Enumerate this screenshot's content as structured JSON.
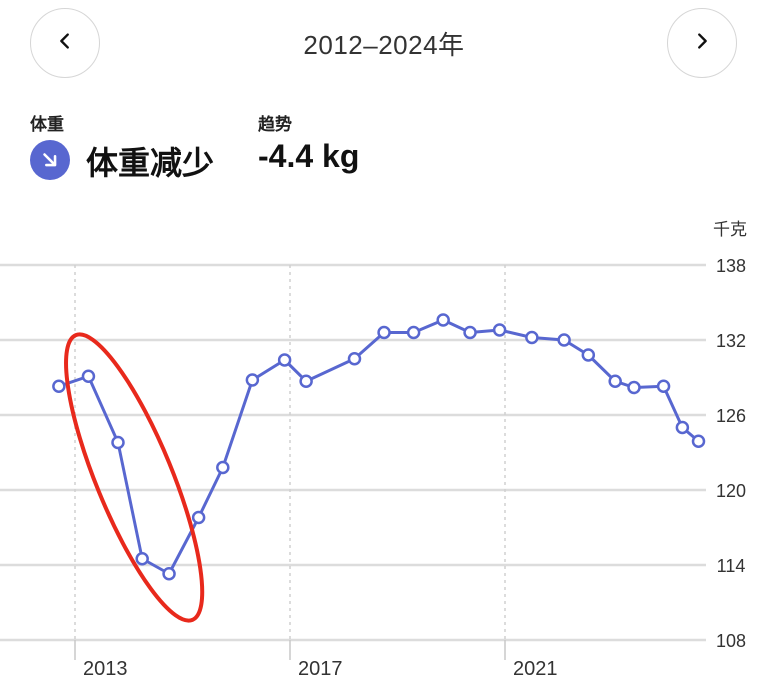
{
  "header": {
    "range_title": "2012–2024年",
    "prev_icon": "chevron-left-icon",
    "next_icon": "chevron-right-icon"
  },
  "stats": {
    "weight_label": "体重",
    "weight_value": "体重减少",
    "trend_label": "趋势",
    "trend_value": "-4.4 kg",
    "trend_icon": "arrow-down-right-icon",
    "accent_color": "#5867d0"
  },
  "chart_data": {
    "type": "line",
    "ylabel": "千克",
    "ylim": [
      108,
      138
    ],
    "yticks": [
      108,
      114,
      120,
      126,
      132,
      138
    ],
    "xlim": [
      2012.6,
      2024.6
    ],
    "xticks": [
      {
        "value": 2013,
        "label": "2013"
      },
      {
        "value": 2017,
        "label": "2017"
      },
      {
        "value": 2021,
        "label": "2021"
      }
    ],
    "series": [
      {
        "color": "#5867d0",
        "points": [
          {
            "x": 2012.7,
            "y": 128.3
          },
          {
            "x": 2013.25,
            "y": 129.1
          },
          {
            "x": 2013.8,
            "y": 123.8
          },
          {
            "x": 2014.25,
            "y": 114.5
          },
          {
            "x": 2014.75,
            "y": 113.3
          },
          {
            "x": 2015.3,
            "y": 117.8
          },
          {
            "x": 2015.75,
            "y": 121.8
          },
          {
            "x": 2016.3,
            "y": 128.8
          },
          {
            "x": 2016.9,
            "y": 130.4
          },
          {
            "x": 2017.3,
            "y": 128.7
          },
          {
            "x": 2018.2,
            "y": 130.5
          },
          {
            "x": 2018.75,
            "y": 132.6
          },
          {
            "x": 2019.3,
            "y": 132.6
          },
          {
            "x": 2019.85,
            "y": 133.6
          },
          {
            "x": 2020.35,
            "y": 132.6
          },
          {
            "x": 2020.9,
            "y": 132.8
          },
          {
            "x": 2021.5,
            "y": 132.2
          },
          {
            "x": 2022.1,
            "y": 132.0
          },
          {
            "x": 2022.55,
            "y": 130.8
          },
          {
            "x": 2023.05,
            "y": 128.7
          },
          {
            "x": 2023.4,
            "y": 128.2
          },
          {
            "x": 2023.95,
            "y": 128.3
          },
          {
            "x": 2024.3,
            "y": 125.0
          },
          {
            "x": 2024.6,
            "y": 123.9
          }
        ]
      }
    ],
    "annotation": {
      "shape": "ellipse",
      "color": "#e8291c",
      "from": {
        "x": 2013.1,
        "y": 131.5
      },
      "to": {
        "x": 2015.1,
        "y": 110.5
      }
    },
    "grid": true
  }
}
